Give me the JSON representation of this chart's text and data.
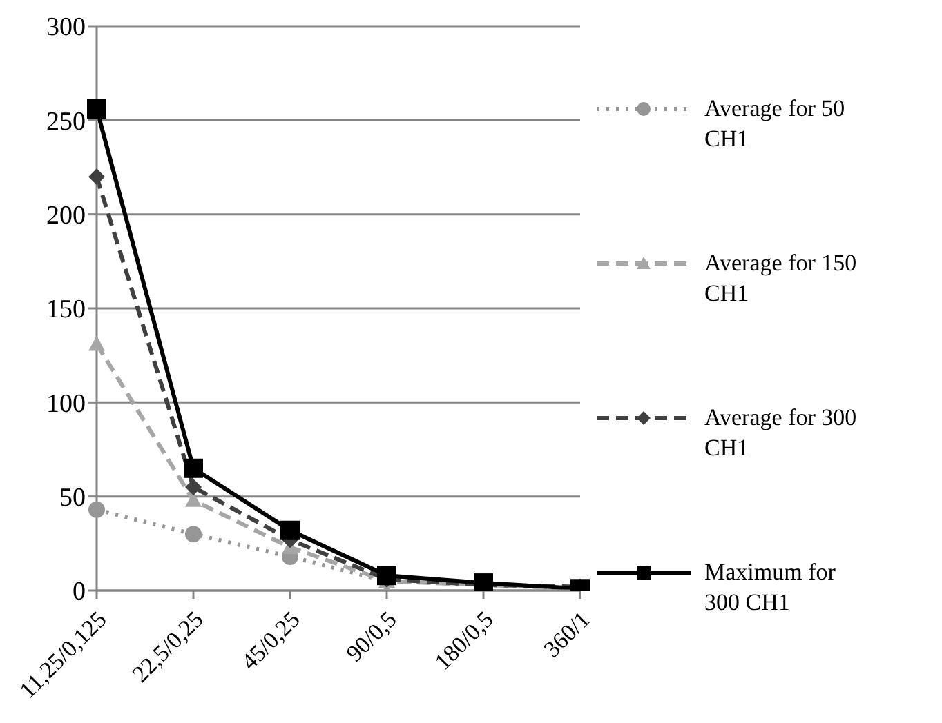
{
  "chart_data": {
    "type": "line",
    "categories": [
      "11,25/0,125",
      "22,5/0,25",
      "45/0,25",
      "90/0,5",
      "180/0,5",
      "360/1"
    ],
    "series": [
      {
        "name": "Average for 50 CH1",
        "color": "#969696",
        "marker": "circle",
        "line_style": "dotted",
        "values": [
          43,
          30,
          18,
          5,
          3,
          1
        ]
      },
      {
        "name": "Average for 150 CH1",
        "color": "#a6a6a6",
        "marker": "triangle",
        "line_style": "dashed",
        "values": [
          131,
          48,
          23,
          5,
          3,
          1
        ]
      },
      {
        "name": "Average for 300 CH1",
        "color": "#404040",
        "marker": "diamond",
        "line_style": "dashed",
        "values": [
          220,
          55,
          27,
          6,
          3,
          2
        ]
      },
      {
        "name": "Maximum for 300 CH1",
        "color": "#000000",
        "marker": "square",
        "line_style": "solid",
        "values": [
          256,
          65,
          32,
          8,
          4,
          1
        ]
      }
    ],
    "ylim": [
      0,
      300
    ],
    "yticks": [
      0,
      50,
      100,
      150,
      200,
      250,
      300
    ],
    "grid": "y",
    "legend": "right"
  }
}
